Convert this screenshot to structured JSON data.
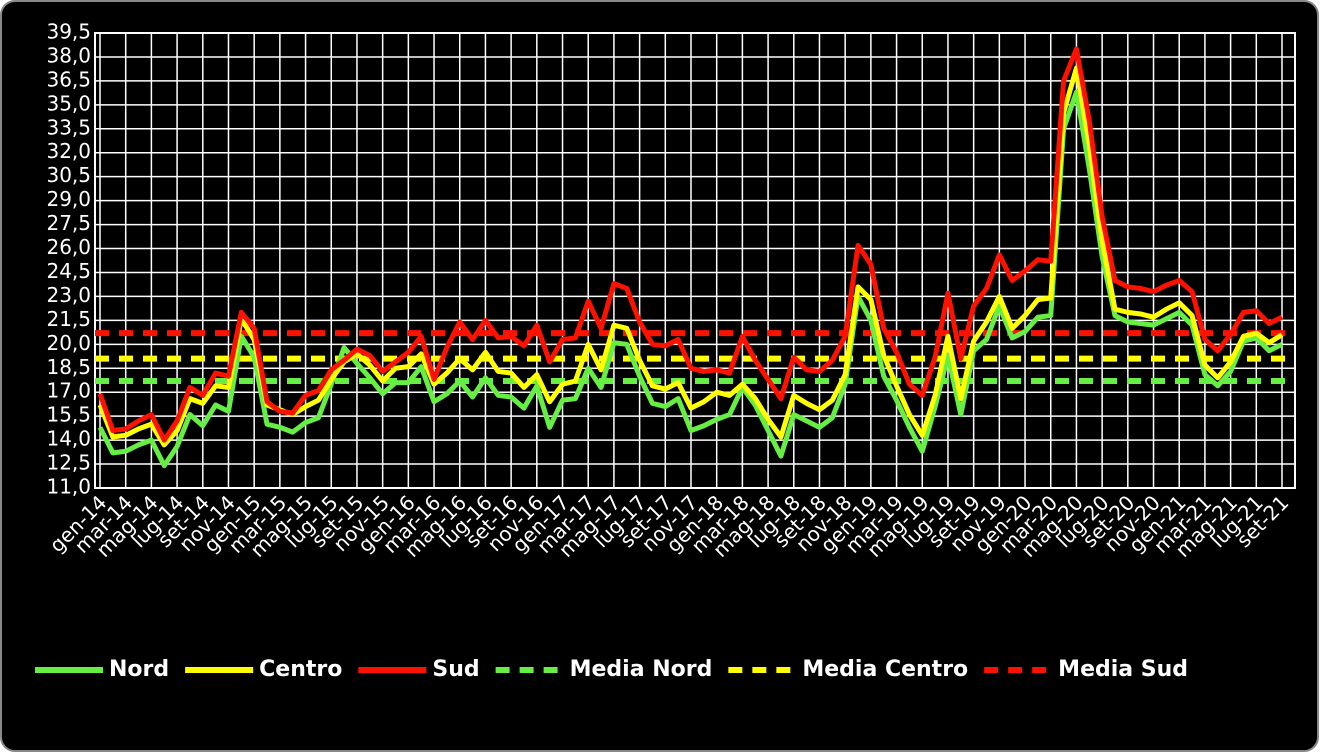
{
  "chart_data": {
    "type": "line",
    "categories": [
      "gen-14",
      null,
      "mar-14",
      null,
      "mag-14",
      null,
      "lug-14",
      null,
      "set-14",
      null,
      "nov-14",
      null,
      "gen-15",
      null,
      "mar-15",
      null,
      "mag-15",
      null,
      "lug-15",
      null,
      "set-15",
      null,
      "nov-15",
      null,
      "gen-16",
      null,
      "mar-16",
      null,
      "mag-16",
      null,
      "lug-16",
      null,
      "set-16",
      null,
      "nov-16",
      null,
      "gen-17",
      null,
      "mar-17",
      null,
      "mag-17",
      null,
      "lug-17",
      null,
      "set-17",
      null,
      "nov-17",
      null,
      "gen-18",
      null,
      "mar-18",
      null,
      "mag-18",
      null,
      "lug-18",
      null,
      "set-18",
      null,
      "nov-18",
      null,
      "gen-19",
      null,
      "mar-19",
      null,
      "mag-19",
      null,
      "lug-19",
      null,
      "set-19",
      null,
      "nov-19",
      null,
      "gen-20",
      null,
      "mar-20",
      null,
      "mag-20",
      null,
      "lug-20",
      null,
      "set-20",
      null,
      "nov-20",
      null,
      "gen-21",
      null,
      "mar-21",
      null,
      "mag-21",
      null,
      "lug-21",
      null,
      "set-21"
    ],
    "series": [
      {
        "name": "Nord",
        "color": "#66ee44",
        "values": [
          14.8,
          13.2,
          13.3,
          13.7,
          14.0,
          12.4,
          13.6,
          15.6,
          14.9,
          16.2,
          15.8,
          20.5,
          19.2,
          15.0,
          14.8,
          14.5,
          15.1,
          15.4,
          17.5,
          19.8,
          18.8,
          17.9,
          16.9,
          17.6,
          17.6,
          18.6,
          16.4,
          16.9,
          17.7,
          16.7,
          17.9,
          16.8,
          16.7,
          16.0,
          17.4,
          14.8,
          16.5,
          16.6,
          18.5,
          17.3,
          20.1,
          20.0,
          18.0,
          16.3,
          16.1,
          16.6,
          14.6,
          14.9,
          15.3,
          15.6,
          17.3,
          16.2,
          14.6,
          13.0,
          15.6,
          15.2,
          14.8,
          15.4,
          17.5,
          23.0,
          21.5,
          18.0,
          16.5,
          14.8,
          13.3,
          16.1,
          19.3,
          15.6,
          19.6,
          20.3,
          22.4,
          20.4,
          20.8,
          21.7,
          21.8,
          33.5,
          35.8,
          31.0,
          25.5,
          21.8,
          21.4,
          21.3,
          21.2,
          21.6,
          22.0,
          21.2,
          18.1,
          17.4,
          18.3,
          20.2,
          20.4,
          19.6,
          20.0
        ]
      },
      {
        "name": "Centro",
        "color": "#ffff00",
        "values": [
          16.2,
          14.2,
          14.3,
          14.7,
          15.0,
          13.7,
          14.6,
          16.6,
          16.3,
          17.4,
          17.3,
          21.6,
          20.3,
          16.2,
          15.9,
          15.6,
          16.1,
          16.5,
          17.8,
          18.9,
          19.4,
          18.7,
          17.7,
          18.5,
          18.6,
          19.4,
          17.5,
          18.2,
          19.1,
          18.4,
          19.5,
          18.3,
          18.2,
          17.3,
          18.1,
          16.4,
          17.5,
          17.7,
          20.0,
          18.4,
          21.2,
          21.0,
          19.0,
          17.4,
          17.2,
          17.6,
          16.0,
          16.4,
          17.0,
          16.8,
          17.5,
          16.6,
          15.3,
          14.2,
          16.8,
          16.3,
          15.9,
          16.5,
          18.1,
          23.6,
          22.8,
          19.3,
          17.4,
          15.6,
          14.3,
          16.8,
          20.5,
          16.6,
          20.2,
          21.4,
          23.0,
          21.0,
          21.8,
          22.8,
          22.9,
          34.5,
          37.3,
          32.5,
          26.5,
          22.2,
          22.0,
          21.9,
          21.7,
          22.2,
          22.6,
          21.8,
          18.7,
          17.9,
          18.9,
          20.5,
          20.7,
          20.1,
          20.6
        ]
      },
      {
        "name": "Sud",
        "color": "#ff1100",
        "values": [
          16.9,
          14.6,
          14.7,
          15.2,
          15.6,
          14.0,
          15.2,
          17.3,
          16.8,
          18.2,
          18.0,
          22.0,
          21.0,
          16.4,
          15.8,
          15.7,
          16.8,
          17.1,
          18.4,
          19.0,
          19.7,
          19.3,
          18.3,
          18.9,
          19.5,
          20.5,
          17.8,
          19.8,
          21.4,
          20.3,
          21.5,
          20.4,
          20.5,
          19.9,
          21.2,
          18.9,
          20.3,
          20.4,
          22.7,
          21.0,
          23.8,
          23.5,
          21.4,
          20.0,
          19.9,
          20.3,
          18.5,
          18.3,
          18.4,
          18.2,
          20.5,
          19.0,
          17.8,
          16.6,
          19.2,
          18.4,
          18.3,
          19.0,
          20.5,
          26.2,
          25.0,
          21.0,
          19.5,
          17.5,
          16.8,
          19.2,
          23.2,
          19.1,
          22.4,
          23.5,
          25.6,
          24.0,
          24.6,
          25.3,
          25.2,
          36.5,
          38.5,
          34.0,
          28.0,
          24.0,
          23.6,
          23.5,
          23.3,
          23.7,
          24.0,
          23.3,
          20.3,
          19.6,
          20.6,
          22.0,
          22.1,
          21.3,
          21.7
        ]
      },
      {
        "name": "Media Nord",
        "color": "#66ee44",
        "dashed": true,
        "value": 17.7
      },
      {
        "name": "Media Centro",
        "color": "#ffff00",
        "dashed": true,
        "value": 19.1
      },
      {
        "name": "Media Sud",
        "color": "#ff1100",
        "dashed": true,
        "value": 20.7
      }
    ],
    "ylim": [
      11,
      39.5
    ],
    "yticks": [
      {
        "value": 11,
        "label": "11,0"
      },
      {
        "value": 12.5,
        "label": "12,5"
      },
      {
        "value": 14,
        "label": "14,0"
      },
      {
        "value": 15.5,
        "label": "15,5"
      },
      {
        "value": 17,
        "label": "17,0"
      },
      {
        "value": 18.5,
        "label": "18,5"
      },
      {
        "value": 20,
        "label": "20,0"
      },
      {
        "value": 21.5,
        "label": "21,5"
      },
      {
        "value": 23,
        "label": "23,0"
      },
      {
        "value": 24.5,
        "label": "24,5"
      },
      {
        "value": 26,
        "label": "26,0"
      },
      {
        "value": 27.5,
        "label": "27,5"
      },
      {
        "value": 29,
        "label": "29,0"
      },
      {
        "value": 30.5,
        "label": "30,5"
      },
      {
        "value": 32,
        "label": "32,0"
      },
      {
        "value": 33.5,
        "label": "33,5"
      },
      {
        "value": 35,
        "label": "35,0"
      },
      {
        "value": 36.5,
        "label": "36,5"
      },
      {
        "value": 38,
        "label": "38,0"
      },
      {
        "value": 39.5,
        "label": "39,5"
      }
    ],
    "grid": true,
    "legend": "bottom"
  }
}
